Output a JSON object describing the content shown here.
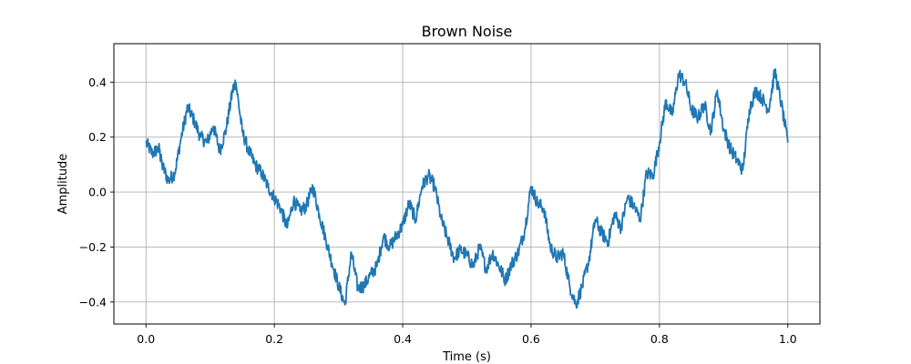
{
  "chart_data": {
    "type": "line",
    "title": "Brown Noise",
    "xlabel": "Time (s)",
    "ylabel": "Amplitude",
    "xlim": [
      -0.05,
      1.05
    ],
    "ylim": [
      -0.48,
      0.54
    ],
    "xticks": [
      0.0,
      0.2,
      0.4,
      0.6,
      0.8,
      1.0
    ],
    "xtick_labels": [
      "0.0",
      "0.2",
      "0.4",
      "0.6",
      "0.8",
      "1.0"
    ],
    "yticks": [
      -0.4,
      -0.2,
      0.0,
      0.2,
      0.4
    ],
    "ytick_labels": [
      "−0.4",
      "−0.2",
      "0.0",
      "0.2",
      "0.4"
    ],
    "grid": true,
    "legend": "none",
    "color": "#1f77b4",
    "series": [
      {
        "x": [
          0.0,
          0.01,
          0.02,
          0.025,
          0.035,
          0.045,
          0.055,
          0.065,
          0.075,
          0.085,
          0.095,
          0.105,
          0.115,
          0.125,
          0.135,
          0.14,
          0.15,
          0.16,
          0.17,
          0.18,
          0.19,
          0.2,
          0.21,
          0.22,
          0.23,
          0.24,
          0.25,
          0.26,
          0.27,
          0.28,
          0.29,
          0.3,
          0.31,
          0.32,
          0.33,
          0.34,
          0.35,
          0.36,
          0.37,
          0.38,
          0.39,
          0.4,
          0.41,
          0.42,
          0.43,
          0.44,
          0.45,
          0.46,
          0.47,
          0.48,
          0.49,
          0.5,
          0.51,
          0.52,
          0.53,
          0.54,
          0.55,
          0.56,
          0.57,
          0.58,
          0.59,
          0.6,
          0.61,
          0.62,
          0.63,
          0.64,
          0.65,
          0.66,
          0.67,
          0.68,
          0.69,
          0.7,
          0.71,
          0.72,
          0.73,
          0.74,
          0.75,
          0.76,
          0.77,
          0.78,
          0.79,
          0.8,
          0.81,
          0.82,
          0.83,
          0.84,
          0.85,
          0.86,
          0.87,
          0.88,
          0.89,
          0.9,
          0.91,
          0.92,
          0.93,
          0.94,
          0.95,
          0.96,
          0.97,
          0.98,
          0.99,
          1.0
        ],
        "y": [
          0.18,
          0.14,
          0.16,
          0.1,
          0.04,
          0.07,
          0.2,
          0.31,
          0.26,
          0.2,
          0.18,
          0.24,
          0.15,
          0.23,
          0.37,
          0.4,
          0.22,
          0.15,
          0.1,
          0.07,
          0.02,
          -0.02,
          -0.06,
          -0.13,
          -0.03,
          -0.07,
          -0.05,
          0.02,
          -0.08,
          -0.17,
          -0.26,
          -0.34,
          -0.41,
          -0.22,
          -0.35,
          -0.34,
          -0.3,
          -0.27,
          -0.16,
          -0.2,
          -0.16,
          -0.12,
          -0.04,
          -0.1,
          0.02,
          0.06,
          0.02,
          -0.1,
          -0.17,
          -0.24,
          -0.21,
          -0.23,
          -0.27,
          -0.2,
          -0.28,
          -0.22,
          -0.27,
          -0.32,
          -0.26,
          -0.22,
          -0.14,
          0.02,
          -0.04,
          -0.06,
          -0.2,
          -0.24,
          -0.22,
          -0.34,
          -0.41,
          -0.34,
          -0.25,
          -0.1,
          -0.15,
          -0.18,
          -0.08,
          -0.13,
          -0.02,
          -0.05,
          -0.1,
          0.07,
          0.06,
          0.18,
          0.33,
          0.28,
          0.43,
          0.4,
          0.3,
          0.27,
          0.32,
          0.22,
          0.37,
          0.23,
          0.16,
          0.12,
          0.08,
          0.3,
          0.37,
          0.34,
          0.3,
          0.44,
          0.32,
          0.18
        ]
      }
    ]
  }
}
